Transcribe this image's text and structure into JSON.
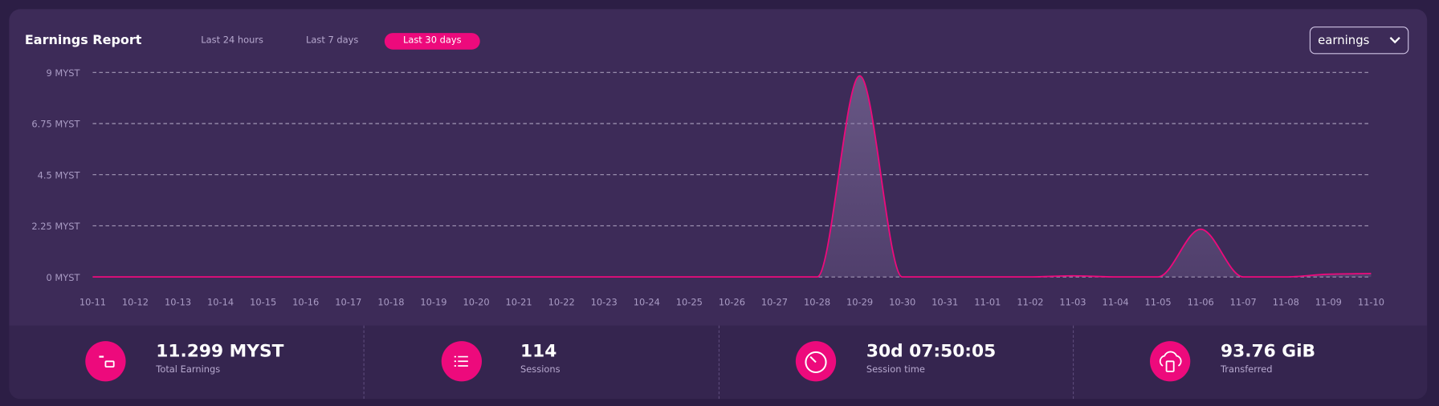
{
  "header": {
    "title": "Earnings Report",
    "tabs": [
      "Last 24 hours",
      "Last 7 days",
      "Last 30 days"
    ],
    "dropdown": "earnings"
  },
  "chart_data": {
    "type": "line",
    "categories": [
      "10-11",
      "10-12",
      "10-13",
      "10-14",
      "10-15",
      "10-16",
      "10-17",
      "10-18",
      "10-19",
      "10-20",
      "10-21",
      "10-22",
      "10-23",
      "10-24",
      "10-25",
      "10-26",
      "10-27",
      "10-28",
      "10-29",
      "10-30",
      "10-31",
      "11-01",
      "11-02",
      "11-03",
      "11-04",
      "11-05",
      "11-06",
      "11-07",
      "11-08",
      "11-09",
      "11-10"
    ],
    "series": [
      {
        "name": "earnings",
        "color": "#ed0a7c",
        "values": [
          0,
          0,
          0,
          0,
          0,
          0,
          0,
          0,
          0,
          0,
          0,
          0,
          0,
          0,
          0,
          0,
          0,
          0,
          8.85,
          0,
          0,
          0,
          0,
          0.05,
          0,
          0,
          2.1,
          0,
          0,
          0.12,
          0.15
        ]
      }
    ],
    "ylim": [
      0,
      9
    ],
    "yticks": [
      {
        "value": 0,
        "label": "0 MYST"
      },
      {
        "value": 2.25,
        "label": "2.25 MYST"
      },
      {
        "value": 4.5,
        "label": "4.5 MYST"
      },
      {
        "value": 6.75,
        "label": "6.75 MYST"
      },
      {
        "value": 9,
        "label": "9 MYST"
      }
    ],
    "grid": true
  },
  "stats": [
    {
      "value": "11.299 MYST",
      "label": "Total Earnings"
    },
    {
      "value": "114",
      "label": "Sessions"
    },
    {
      "value": "30d 07:50:05",
      "label": "Session time"
    },
    {
      "value": "93.76 GiB",
      "label": "Transferred"
    }
  ]
}
